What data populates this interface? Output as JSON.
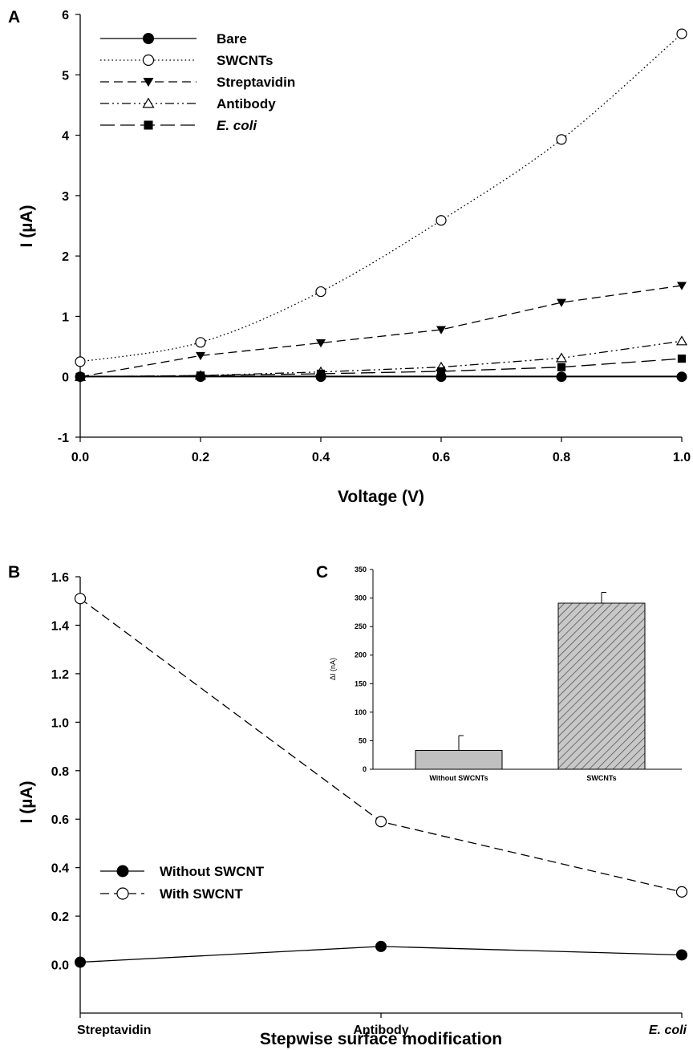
{
  "chart_data": [
    {
      "panel": "A",
      "type": "line",
      "title": "",
      "xlabel": "Voltage (V)",
      "ylabel": "I (µA)",
      "xlim": [
        0.0,
        1.0
      ],
      "ylim": [
        -1,
        6
      ],
      "xticks": [
        "0.0",
        "0.2",
        "0.4",
        "0.6",
        "0.8",
        "1.0"
      ],
      "yticks": [
        "-1",
        "0",
        "1",
        "2",
        "3",
        "4",
        "5",
        "6"
      ],
      "x": [
        0.0,
        0.2,
        0.4,
        0.6,
        0.8,
        1.0
      ],
      "legend": "top-left",
      "series": [
        {
          "name": "Bare",
          "values": [
            0.0,
            0.0,
            0.0,
            0.0,
            0.0,
            0.0
          ],
          "marker": "filled-circle",
          "line": "solid"
        },
        {
          "name": "SWCNTs",
          "values": [
            0.25,
            0.57,
            1.41,
            2.59,
            3.93,
            5.68
          ],
          "marker": "open-circle",
          "line": "dotted"
        },
        {
          "name": "Streptavidin",
          "values": [
            0.0,
            0.35,
            0.56,
            0.78,
            1.23,
            1.51
          ],
          "marker": "filled-triangle-down",
          "line": "dashed"
        },
        {
          "name": "Antibody",
          "values": [
            0.0,
            0.02,
            0.08,
            0.16,
            0.31,
            0.59
          ],
          "marker": "open-triangle-up",
          "line": "dash-dot-dot"
        },
        {
          "name": "E. coli",
          "values": [
            0.0,
            0.02,
            0.05,
            0.09,
            0.16,
            0.3
          ],
          "marker": "filled-square",
          "line": "long-dash"
        }
      ]
    },
    {
      "panel": "B",
      "type": "line",
      "title": "",
      "xlabel": "Stepwise surface modification",
      "ylabel": "I (µA)",
      "categories": [
        "Streptavidin",
        "Antibody",
        "E. coli"
      ],
      "ylim": [
        -0.2,
        1.6
      ],
      "yticks": [
        "0.0",
        "0.2",
        "0.4",
        "0.6",
        "0.8",
        "1.0",
        "1.2",
        "1.4",
        "1.6"
      ],
      "legend": "left-middle",
      "series": [
        {
          "name": "Without SWCNT",
          "values": [
            0.01,
            0.075,
            0.04
          ],
          "marker": "filled-circle",
          "line": "solid"
        },
        {
          "name": "With SWCNT",
          "values": [
            1.51,
            0.59,
            0.3
          ],
          "marker": "open-circle",
          "line": "dashed"
        }
      ]
    },
    {
      "panel": "C",
      "type": "bar",
      "title": "",
      "xlabel": "",
      "ylabel": "ΔI (nA)",
      "categories": [
        "Without SWCNTs",
        "SWCNTs"
      ],
      "values": [
        33,
        291
      ],
      "errors": [
        26,
        19
      ],
      "ylim": [
        0,
        350
      ],
      "yticks": [
        "0",
        "50",
        "100",
        "150",
        "200",
        "250",
        "300",
        "350"
      ],
      "colors": {
        "bar_fill": "#c0c0c0",
        "hatch": "#555555"
      }
    }
  ]
}
